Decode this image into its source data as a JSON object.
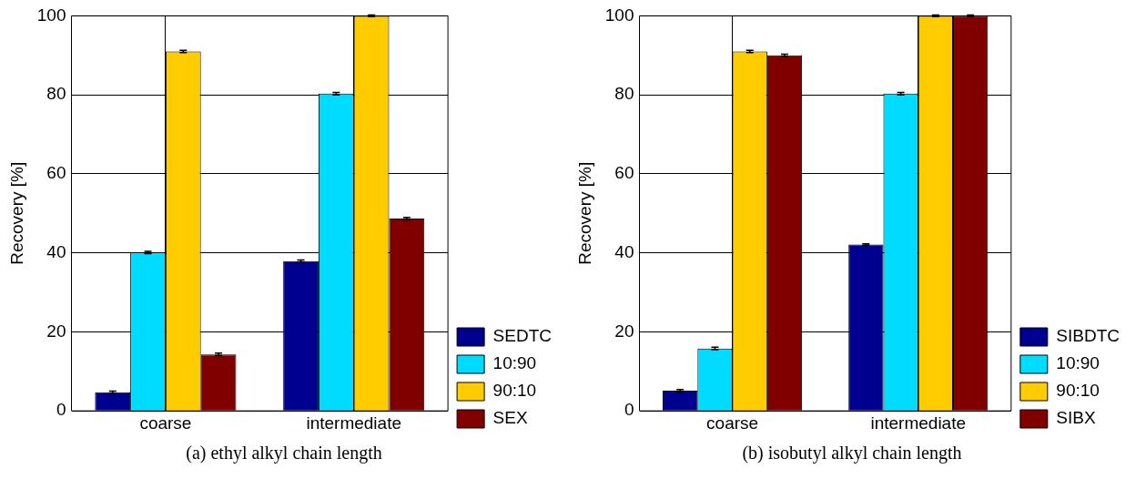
{
  "chart_data": [
    {
      "type": "bar",
      "title": "(a) ethyl alkyl chain length",
      "ylabel": "Recovery [%]",
      "categories": [
        "coarse",
        "intermediate"
      ],
      "series": [
        {
          "name": "SEDTC",
          "color": "#000090",
          "values": [
            4.7,
            37.9
          ],
          "errors": [
            0.3,
            0.3
          ]
        },
        {
          "name": "10:90",
          "color": "#00dcff",
          "values": [
            40.1,
            80.3
          ],
          "errors": [
            0.3,
            0.3
          ]
        },
        {
          "name": "90:10",
          "color": "#ffcc00",
          "values": [
            91.0,
            100
          ],
          "errors": [
            0.3,
            0.2
          ]
        },
        {
          "name": "SEX",
          "color": "#800000",
          "values": [
            14.3,
            48.7
          ],
          "errors": [
            0.3,
            0.3
          ]
        }
      ],
      "ylim": [
        0,
        100
      ],
      "yticks": [
        0,
        20,
        40,
        60,
        80,
        100
      ],
      "grid": true,
      "legend": "bottom right"
    },
    {
      "type": "bar",
      "title": "(b) isobutyl alkyl chain length",
      "ylabel": "Recovery [%]",
      "categories": [
        "coarse",
        "intermediate"
      ],
      "series": [
        {
          "name": "SIBDTC",
          "color": "#000090",
          "values": [
            5.1,
            42.1
          ],
          "errors": [
            0.3,
            0.2
          ]
        },
        {
          "name": "10:90",
          "color": "#00dcff",
          "values": [
            15.8,
            80.3
          ],
          "errors": [
            0.3,
            0.3
          ]
        },
        {
          "name": "90:10",
          "color": "#ffcc00",
          "values": [
            91.0,
            100
          ],
          "errors": [
            0.3,
            0.2
          ]
        },
        {
          "name": "SIBX",
          "color": "#800000",
          "values": [
            90.0,
            100
          ],
          "errors": [
            0.3,
            0.2
          ]
        }
      ],
      "ylim": [
        0,
        100
      ],
      "yticks": [
        0,
        20,
        40,
        60,
        80,
        100
      ],
      "grid": true,
      "legend": "bottom right"
    }
  ]
}
